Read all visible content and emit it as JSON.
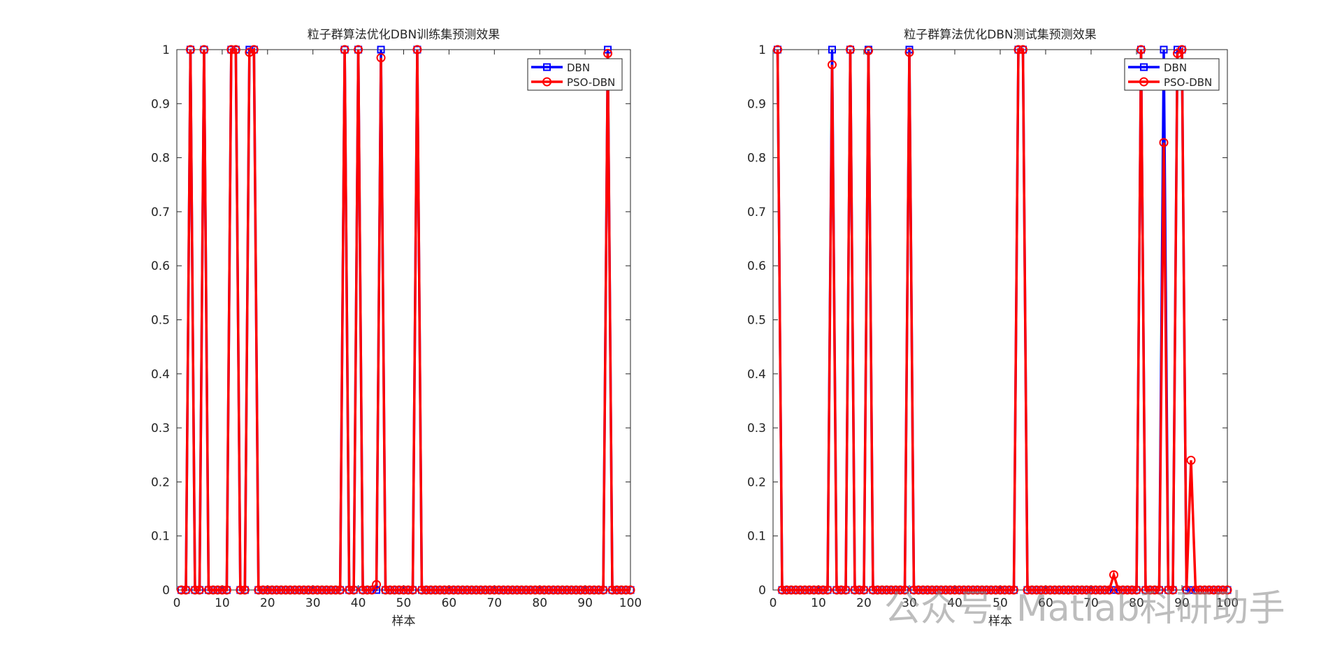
{
  "chart_data": [
    {
      "type": "line",
      "title": "粒子群算法优化DBN训练集预测效果",
      "xlabel": "样本",
      "x": [
        1,
        2,
        3,
        4,
        5,
        6,
        7,
        8,
        9,
        10,
        11,
        12,
        13,
        14,
        15,
        16,
        17,
        18,
        19,
        20,
        21,
        22,
        23,
        24,
        25,
        26,
        27,
        28,
        29,
        30,
        31,
        32,
        33,
        34,
        35,
        36,
        37,
        38,
        39,
        40,
        41,
        42,
        43,
        44,
        45,
        46,
        47,
        48,
        49,
        50,
        51,
        52,
        53,
        54,
        55,
        56,
        57,
        58,
        59,
        60,
        61,
        62,
        63,
        64,
        65,
        66,
        67,
        68,
        69,
        70,
        71,
        72,
        73,
        74,
        75,
        76,
        77,
        78,
        79,
        80,
        81,
        82,
        83,
        84,
        85,
        86,
        87,
        88,
        89,
        90,
        91,
        92,
        93,
        94,
        95,
        96,
        97,
        98,
        99,
        100
      ],
      "series": [
        {
          "name": "DBN",
          "color": "#0000ff",
          "marker": "square",
          "values": [
            0,
            0,
            1,
            0,
            0,
            1,
            0,
            0,
            0,
            0,
            0,
            1,
            1,
            0,
            0,
            1,
            1,
            0,
            0,
            0,
            0,
            0,
            0,
            0,
            0,
            0,
            0,
            0,
            0,
            0,
            0,
            0,
            0,
            0,
            0,
            0,
            1,
            0,
            0,
            1,
            0,
            0,
            0,
            0,
            1,
            0,
            0,
            0,
            0,
            0,
            0,
            0,
            1,
            0,
            0,
            0,
            0,
            0,
            0,
            0,
            0,
            0,
            0,
            0,
            0,
            0,
            0,
            0,
            0,
            0,
            0,
            0,
            0,
            0,
            0,
            0,
            0,
            0,
            0,
            0,
            0,
            0,
            0,
            0,
            0,
            0,
            0,
            0,
            0,
            0,
            0,
            0,
            0,
            0,
            1,
            0,
            0,
            0,
            0,
            0
          ]
        },
        {
          "name": "PSO-DBN",
          "color": "#ff0000",
          "marker": "circle",
          "values": [
            0,
            0,
            1,
            0,
            0,
            1,
            0,
            0,
            0,
            0,
            0,
            1,
            1,
            0,
            0,
            0.995,
            1,
            0,
            0,
            0,
            0,
            0,
            0,
            0,
            0,
            0,
            0,
            0,
            0,
            0,
            0,
            0,
            0,
            0,
            0,
            0,
            1,
            0,
            0,
            1,
            0,
            0,
            0,
            0.01,
            0.985,
            0,
            0,
            0,
            0,
            0,
            0,
            0,
            1,
            0,
            0,
            0,
            0,
            0,
            0,
            0,
            0,
            0,
            0,
            0,
            0,
            0,
            0,
            0,
            0,
            0,
            0,
            0,
            0,
            0,
            0,
            0,
            0,
            0,
            0,
            0,
            0,
            0,
            0,
            0,
            0,
            0,
            0,
            0,
            0,
            0,
            0,
            0,
            0,
            0,
            0.993,
            0,
            0,
            0,
            0,
            0
          ]
        }
      ],
      "xlim": [
        0,
        100
      ],
      "ylim": [
        0,
        1
      ],
      "xticks": [
        0,
        10,
        20,
        30,
        40,
        50,
        60,
        70,
        80,
        90,
        100
      ],
      "yticks": [
        0,
        0.1,
        0.2,
        0.3,
        0.4,
        0.5,
        0.6,
        0.7,
        0.8,
        0.9,
        1
      ],
      "legend": "top-right"
    },
    {
      "type": "line",
      "title": "粒子群算法优化DBN测试集预测效果",
      "xlabel": "样本",
      "x": [
        1,
        2,
        3,
        4,
        5,
        6,
        7,
        8,
        9,
        10,
        11,
        12,
        13,
        14,
        15,
        16,
        17,
        18,
        19,
        20,
        21,
        22,
        23,
        24,
        25,
        26,
        27,
        28,
        29,
        30,
        31,
        32,
        33,
        34,
        35,
        36,
        37,
        38,
        39,
        40,
        41,
        42,
        43,
        44,
        45,
        46,
        47,
        48,
        49,
        50,
        51,
        52,
        53,
        54,
        55,
        56,
        57,
        58,
        59,
        60,
        61,
        62,
        63,
        64,
        65,
        66,
        67,
        68,
        69,
        70,
        71,
        72,
        73,
        74,
        75,
        76,
        77,
        78,
        79,
        80,
        81,
        82,
        83,
        84,
        85,
        86,
        87,
        88,
        89,
        90,
        91,
        92,
        93,
        94,
        95,
        96,
        97,
        98,
        99,
        100
      ],
      "series": [
        {
          "name": "DBN",
          "color": "#0000ff",
          "marker": "square",
          "values": [
            1,
            0,
            0,
            0,
            0,
            0,
            0,
            0,
            0,
            0,
            0,
            0,
            1,
            0,
            0,
            0,
            1,
            0,
            0,
            0,
            1,
            0,
            0,
            0,
            0,
            0,
            0,
            0,
            0,
            1,
            0,
            0,
            0,
            0,
            0,
            0,
            0,
            0,
            0,
            0,
            0,
            0,
            0,
            0,
            0,
            0,
            0,
            0,
            0,
            0,
            0,
            0,
            0,
            1,
            1,
            0,
            0,
            0,
            0,
            0,
            0,
            0,
            0,
            0,
            0,
            0,
            0,
            0,
            0,
            0,
            0,
            0,
            0,
            0,
            0,
            0,
            0,
            0,
            0,
            0,
            1,
            0,
            0,
            0,
            0,
            1,
            0,
            0,
            1,
            1,
            0,
            0,
            0,
            0,
            0,
            0,
            0,
            0,
            0,
            0
          ]
        },
        {
          "name": "PSO-DBN",
          "color": "#ff0000",
          "marker": "circle",
          "values": [
            1,
            0,
            0,
            0,
            0,
            0,
            0,
            0,
            0,
            0,
            0,
            0,
            0.972,
            0,
            0,
            0,
            1,
            0,
            0,
            0,
            0.998,
            0,
            0,
            0,
            0,
            0,
            0,
            0,
            0,
            0.995,
            0,
            0,
            0,
            0,
            0,
            0,
            0,
            0,
            0,
            0,
            0,
            0,
            0,
            0,
            0,
            0,
            0,
            0,
            0,
            0,
            0,
            0,
            0,
            1,
            1,
            0,
            0,
            0,
            0,
            0,
            0,
            0,
            0,
            0,
            0,
            0,
            0,
            0,
            0,
            0,
            0,
            0,
            0,
            0,
            0.028,
            0,
            0,
            0,
            0,
            0,
            1,
            0,
            0,
            0,
            0,
            0.828,
            0,
            0,
            0.993,
            1,
            0,
            0.24,
            0,
            0,
            0,
            0,
            0,
            0,
            0,
            0
          ]
        }
      ],
      "xlim": [
        0,
        100
      ],
      "ylim": [
        0,
        1
      ],
      "xticks": [
        0,
        10,
        20,
        30,
        40,
        50,
        60,
        70,
        80,
        90,
        100
      ],
      "yticks": [
        0,
        0.1,
        0.2,
        0.3,
        0.4,
        0.5,
        0.6,
        0.7,
        0.8,
        0.9,
        1
      ],
      "legend": "top-right"
    }
  ],
  "watermark": "公众号· Matlab科研助手"
}
